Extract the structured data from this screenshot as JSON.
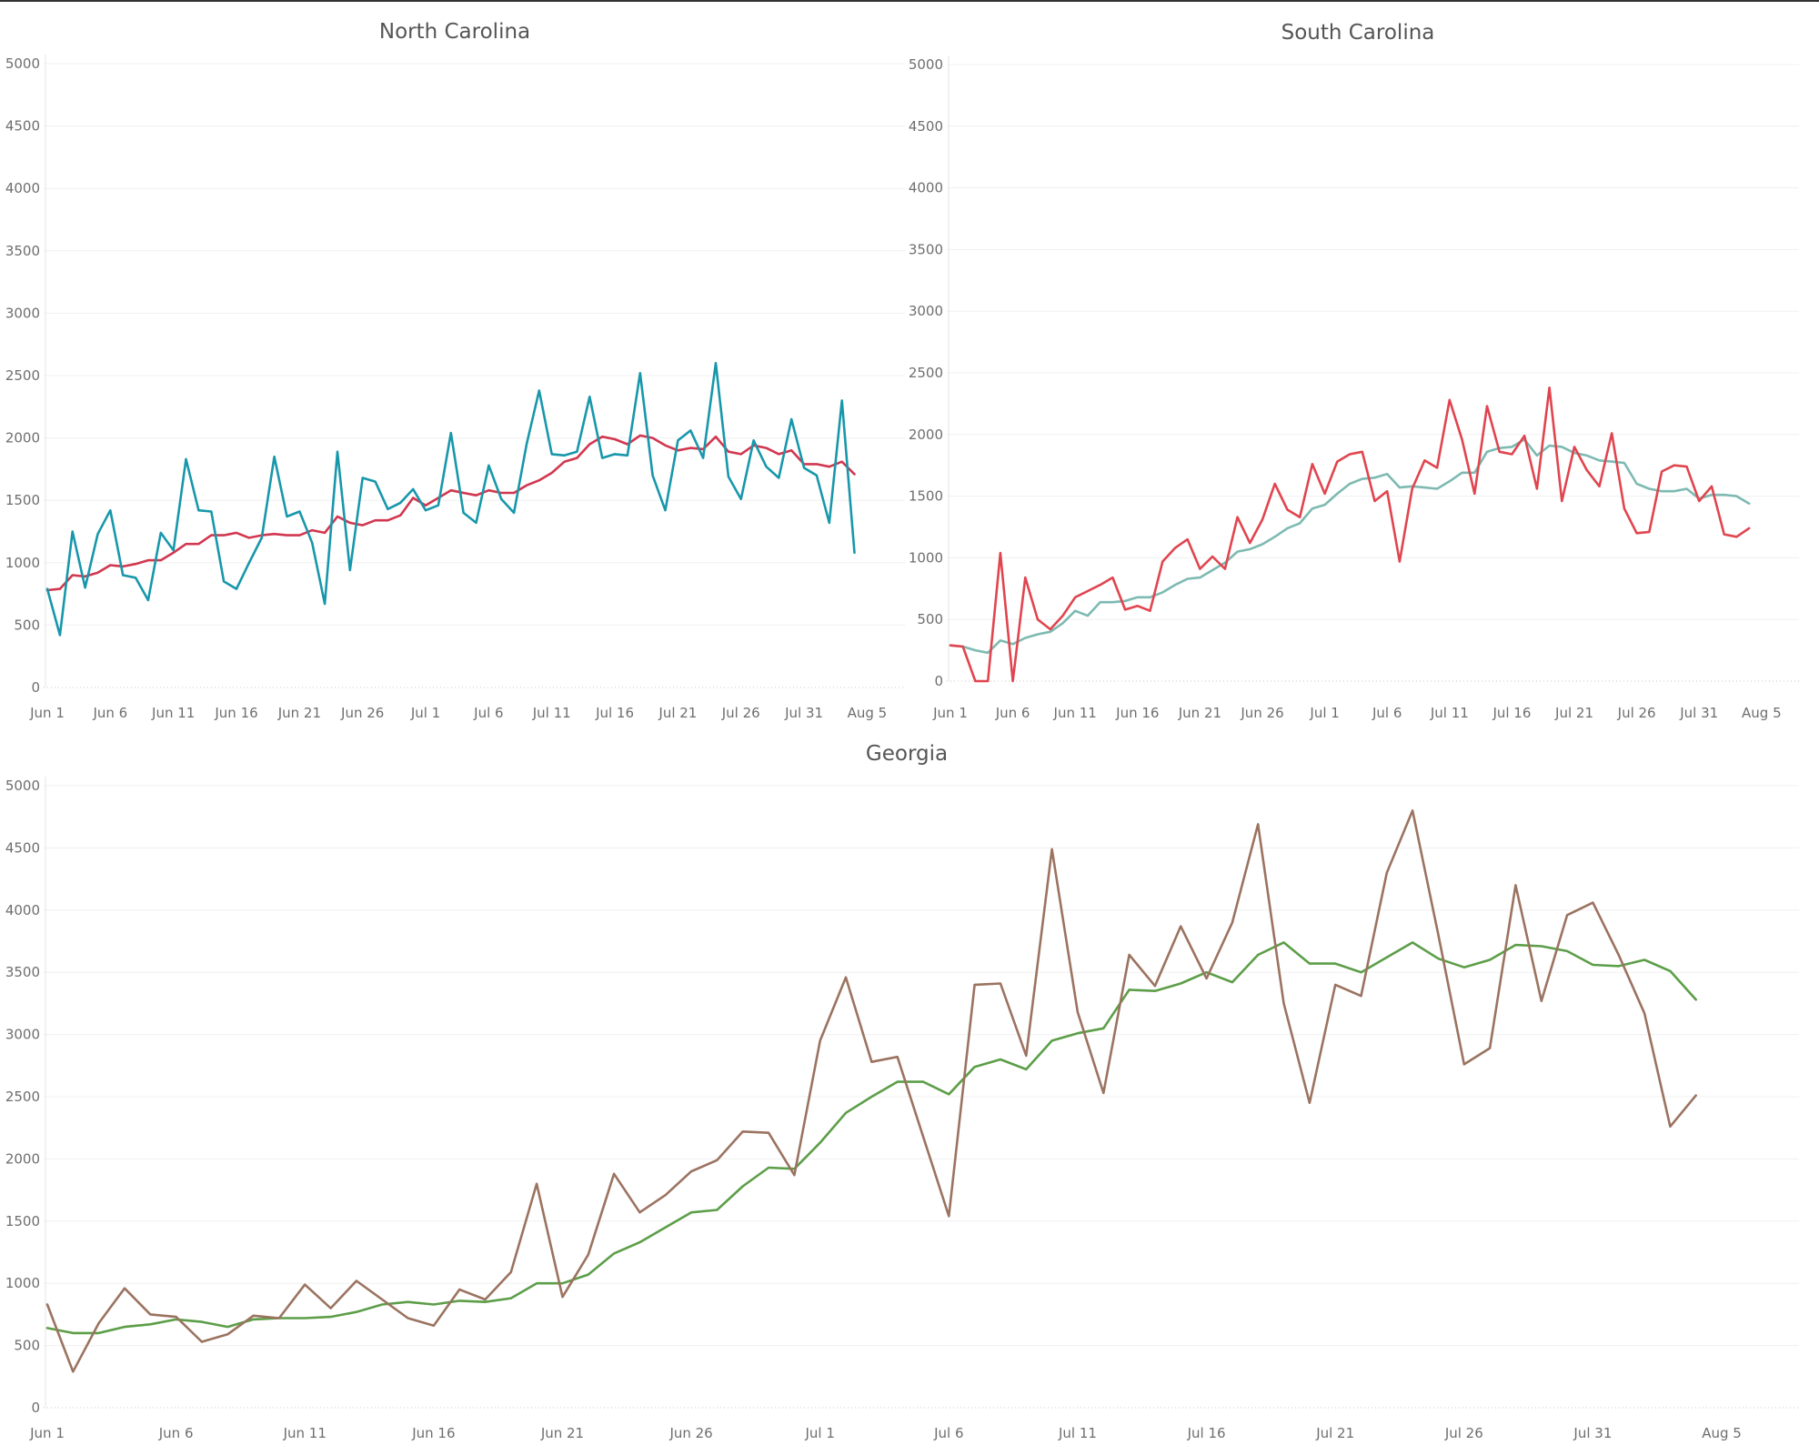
{
  "chart_data": [
    {
      "type": "line",
      "title": "North Carolina",
      "xlabel": "",
      "ylabel": "",
      "x_start": "Jun 1",
      "x_tick_labels": [
        "Jun 1",
        "Jun 6",
        "Jun 11",
        "Jun 16",
        "Jun 21",
        "Jun 26",
        "Jul 1",
        "Jul 6",
        "Jul 11",
        "Jul 16",
        "Jul 21",
        "Jul 26",
        "Jul 31",
        "Aug 5"
      ],
      "ylim": [
        0,
        5000
      ],
      "y_ticks": [
        0,
        500,
        1000,
        1500,
        2000,
        2500,
        3000,
        3500,
        4000,
        4500,
        5000
      ],
      "grid": "horizontal",
      "series": [
        {
          "color": "#d1374f",
          "values": [
            780,
            790,
            900,
            890,
            920,
            980,
            970,
            990,
            1020,
            1020,
            1080,
            1150,
            1150,
            1220,
            1220,
            1240,
            1200,
            1220,
            1230,
            1220,
            1220,
            1260,
            1240,
            1370,
            1320,
            1300,
            1340,
            1340,
            1380,
            1520,
            1460,
            1520,
            1580,
            1560,
            1540,
            1580,
            1560,
            1560,
            1620,
            1660,
            1720,
            1810,
            1840,
            1950,
            2010,
            1990,
            1950,
            2020,
            2000,
            1940,
            1900,
            1920,
            1910,
            2010,
            1890,
            1870,
            1940,
            1920,
            1870,
            1900,
            1790,
            1790,
            1770,
            1810,
            1710
          ]
        },
        {
          "color": "#1897ab",
          "values": [
            790,
            420,
            1250,
            800,
            1230,
            1420,
            900,
            880,
            700,
            1240,
            1100,
            1830,
            1420,
            1410,
            850,
            790,
            1000,
            1200,
            1850,
            1370,
            1410,
            1160,
            670,
            1890,
            940,
            1680,
            1650,
            1430,
            1480,
            1590,
            1420,
            1460,
            2040,
            1400,
            1320,
            1780,
            1510,
            1400,
            1950,
            2380,
            1870,
            1860,
            1890,
            2330,
            1840,
            1870,
            1860,
            2520,
            1700,
            1420,
            1980,
            2060,
            1840,
            2600,
            1690,
            1510,
            1980,
            1770,
            1680,
            2150,
            1760,
            1700,
            1320,
            2300,
            1080
          ]
        }
      ]
    },
    {
      "type": "line",
      "title": "South Carolina",
      "xlabel": "",
      "ylabel": "",
      "x_start": "Jun 1",
      "x_tick_labels": [
        "Jun 1",
        "Jun 6",
        "Jun 11",
        "Jun 16",
        "Jun 21",
        "Jun 26",
        "Jul 1",
        "Jul 6",
        "Jul 11",
        "Jul 16",
        "Jul 21",
        "Jul 26",
        "Jul 31",
        "Aug 5"
      ],
      "ylim": [
        0,
        5000
      ],
      "y_ticks": [
        0,
        500,
        1000,
        1500,
        2000,
        2500,
        3000,
        3500,
        4000,
        4500,
        5000
      ],
      "grid": "horizontal",
      "series": [
        {
          "color": "#7dbab2",
          "values": [
            290,
            280,
            250,
            230,
            330,
            300,
            350,
            380,
            400,
            470,
            570,
            530,
            640,
            640,
            650,
            680,
            680,
            720,
            780,
            830,
            840,
            900,
            960,
            1050,
            1070,
            1110,
            1170,
            1240,
            1280,
            1400,
            1430,
            1520,
            1600,
            1640,
            1650,
            1680,
            1570,
            1580,
            1570,
            1560,
            1620,
            1690,
            1690,
            1860,
            1890,
            1900,
            1960,
            1830,
            1910,
            1900,
            1850,
            1830,
            1790,
            1780,
            1770,
            1600,
            1560,
            1540,
            1540,
            1560,
            1480,
            1510,
            1510,
            1500,
            1440
          ]
        },
        {
          "color": "#e0454f",
          "values": [
            290,
            280,
            0,
            0,
            1040,
            0,
            840,
            500,
            420,
            530,
            680,
            730,
            780,
            840,
            580,
            610,
            570,
            970,
            1080,
            1150,
            910,
            1010,
            910,
            1330,
            1120,
            1310,
            1600,
            1390,
            1330,
            1760,
            1520,
            1780,
            1840,
            1860,
            1460,
            1540,
            970,
            1560,
            1790,
            1730,
            2280,
            1960,
            1520,
            2230,
            1860,
            1840,
            1990,
            1560,
            2380,
            1460,
            1900,
            1710,
            1580,
            2010,
            1400,
            1200,
            1210,
            1700,
            1750,
            1740,
            1460,
            1580,
            1190,
            1170,
            1240
          ]
        }
      ]
    },
    {
      "type": "line",
      "title": "Georgia",
      "xlabel": "",
      "ylabel": "",
      "x_start": "Jun 1",
      "x_tick_labels": [
        "Jun 1",
        "Jun 6",
        "Jun 11",
        "Jun 16",
        "Jun 21",
        "Jun 26",
        "Jul 1",
        "Jul 6",
        "Jul 11",
        "Jul 16",
        "Jul 21",
        "Jul 26",
        "Jul 31",
        "Aug 5"
      ],
      "ylim": [
        0,
        5000
      ],
      "y_ticks": [
        0,
        500,
        1000,
        1500,
        2000,
        2500,
        3000,
        3500,
        4000,
        4500,
        5000
      ],
      "grid": "horizontal",
      "series": [
        {
          "color": "#5c9e48",
          "values": [
            640,
            600,
            600,
            650,
            670,
            710,
            690,
            650,
            710,
            720,
            720,
            730,
            770,
            830,
            850,
            830,
            860,
            850,
            880,
            1000,
            1000,
            1070,
            1240,
            1330,
            1450,
            1570,
            1590,
            1780,
            1930,
            1920,
            2130,
            2370,
            2500,
            2620,
            2620,
            2520,
            2740,
            2800,
            2720,
            2950,
            3010,
            3050,
            3360,
            3350,
            3410,
            3500,
            3420,
            3640,
            3740,
            3570,
            3570,
            3500,
            3620,
            3740,
            3610,
            3540,
            3600,
            3720,
            3710,
            3670,
            3560,
            3550,
            3600,
            3510,
            3280
          ]
        },
        {
          "color": "#9b7360",
          "values": [
            830,
            290,
            680,
            960,
            750,
            730,
            530,
            590,
            740,
            720,
            990,
            800,
            1020,
            870,
            720,
            660,
            950,
            870,
            1090,
            1800,
            890,
            1230,
            1880,
            1570,
            1710,
            1900,
            1990,
            2220,
            2210,
            1870,
            2950,
            3460,
            2780,
            2820,
            2180,
            1540,
            3400,
            3410,
            2830,
            4490,
            3180,
            2530,
            3640,
            3390,
            3870,
            3450,
            3900,
            4690,
            3250,
            2450,
            3400,
            3310,
            4300,
            4800,
            3800,
            2760,
            2890,
            4200,
            3270,
            3960,
            4060,
            3640,
            3170,
            2260,
            2510
          ]
        }
      ]
    }
  ]
}
